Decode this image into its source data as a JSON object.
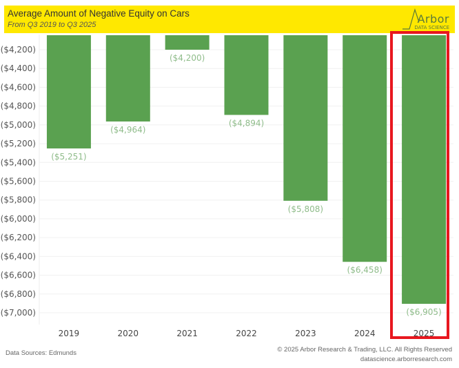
{
  "header": {
    "title": "Average Amount of Negative Equity on Cars",
    "subtitle": "From Q3 2019 to Q3 2025",
    "logo_name": "Arbor",
    "logo_sub": "DATA SCIENCE"
  },
  "footer": {
    "source": "Data Sources: Edmunds",
    "copyright": "© 2025 Arbor Research & Trading, LLC. All Rights Reserved",
    "website": "datascience.arborresearch.com"
  },
  "colors": {
    "header_bg": "#ffe800",
    "bar": "#5aa150",
    "data_label": "#8fbc8a",
    "highlight": "#e8171f"
  },
  "chart_data": {
    "type": "bar",
    "title": "Average Amount of Negative Equity on Cars",
    "subtitle": "From Q3 2019 to Q3 2025",
    "xlabel": "",
    "ylabel": "",
    "categories": [
      "2019",
      "2020",
      "2021",
      "2022",
      "2023",
      "2024",
      "2025"
    ],
    "values": [
      -5251,
      -4964,
      -4200,
      -4894,
      -5808,
      -6458,
      -6905
    ],
    "data_labels": [
      "($5,251)",
      "($4,964)",
      "($4,200)",
      "($4,894)",
      "($5,808)",
      "($6,458)",
      "($6,905)"
    ],
    "yticks": [
      -4200,
      -4400,
      -4600,
      -4800,
      -5000,
      -5200,
      -5400,
      -5600,
      -5800,
      -6000,
      -6200,
      -6400,
      -6600,
      -6800,
      -7000
    ],
    "ytick_labels": [
      "($4,200)",
      "($4,400)",
      "($4,600)",
      "($4,800)",
      "($5,000)",
      "($5,200)",
      "($5,400)",
      "($5,600)",
      "($5,800)",
      "($6,000)",
      "($6,200)",
      "($6,400)",
      "($6,600)",
      "($6,800)",
      "($7,000)"
    ],
    "ylim": [
      -7150,
      -4050
    ],
    "grid": true,
    "highlighted_category": "2025",
    "legend": "none"
  }
}
